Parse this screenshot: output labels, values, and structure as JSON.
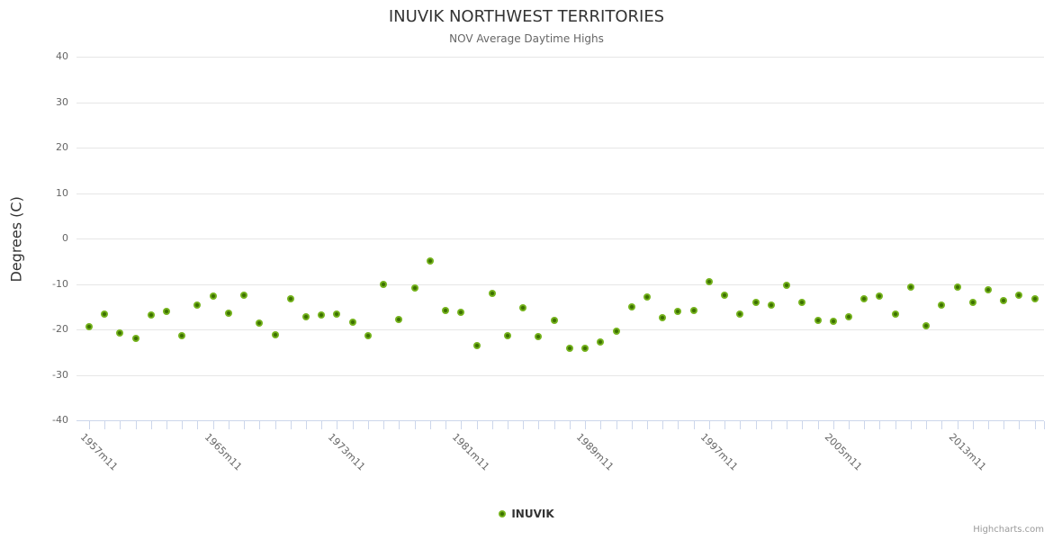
{
  "header": {
    "title": "INUVIK NORTHWEST TERRITORIES",
    "subtitle": "NOV Average Daytime Highs"
  },
  "chart_data": {
    "type": "scatter",
    "title": "INUVIK NORTHWEST TERRITORIES",
    "subtitle": "NOV Average Daytime Highs",
    "xlabel": "",
    "ylabel": "Degrees (C)",
    "ylim": [
      -40,
      40
    ],
    "xlim": [
      1956.2,
      2018.6
    ],
    "grid": true,
    "legend_position": "bottom-center",
    "yticks": [
      40,
      30,
      20,
      10,
      0,
      -10,
      -20,
      -30,
      -40
    ],
    "ytick_labels": [
      "40",
      "30",
      "20",
      "10",
      "0",
      "-10",
      "-20",
      "-30",
      "-40"
    ],
    "xtick_years": [
      1957,
      1965,
      1973,
      1981,
      1989,
      1997,
      2005,
      2013
    ],
    "xtick_labels": [
      "1957m11",
      "1965m11",
      "1973m11",
      "1981m11",
      "1989m11",
      "1997m11",
      "2005m11",
      "2013m11"
    ],
    "series": [
      {
        "name": "INUVIK",
        "color": "#76b41e",
        "x": [
          1957,
          1958,
          1959,
          1960,
          1961,
          1962,
          1963,
          1964,
          1965,
          1966,
          1967,
          1968,
          1969,
          1970,
          1971,
          1972,
          1973,
          1974,
          1975,
          1976,
          1977,
          1978,
          1979,
          1980,
          1981,
          1982,
          1983,
          1984,
          1985,
          1986,
          1987,
          1988,
          1989,
          1990,
          1991,
          1992,
          1993,
          1994,
          1995,
          1996,
          1997,
          1998,
          1999,
          2000,
          2001,
          2002,
          2003,
          2004,
          2005,
          2006,
          2007,
          2008,
          2009,
          2010,
          2011,
          2012,
          2013,
          2014,
          2015,
          2016,
          2017,
          2018
        ],
        "values": [
          -19.4,
          -16.7,
          -20.8,
          -21.9,
          -16.8,
          -16.0,
          -21.3,
          -14.6,
          -12.7,
          -16.5,
          -12.4,
          -18.6,
          -21.1,
          -13.2,
          -17.3,
          -16.8,
          -16.6,
          -18.5,
          -21.3,
          -10.0,
          -17.8,
          -10.9,
          -5.0,
          -15.8,
          -16.3,
          -23.6,
          -12.0,
          -21.3,
          -15.3,
          -21.6,
          -18.1,
          -24.1,
          -24.1,
          -22.8,
          -20.4,
          -15.0,
          -12.8,
          -17.4,
          -16.0,
          -15.8,
          -9.4,
          -12.5,
          -16.7,
          -14.0,
          -14.7,
          -10.2,
          -14.1,
          -18.0,
          -18.3,
          -17.3,
          -13.3,
          -12.7,
          -16.6,
          -10.7,
          -19.1,
          -14.6,
          -10.7,
          -14.0,
          -11.3,
          -13.6,
          -12.4,
          -13.2
        ]
      }
    ]
  },
  "legend": {
    "label": "INUVIK"
  },
  "footer": {
    "credits": "Highcharts.com"
  },
  "colors": {
    "marker_fill": "#76b41e",
    "marker_center": "#3c7000",
    "gridline": "#e6e6e6",
    "axis_line": "#ccd6eb",
    "tick": "#ccd6eb",
    "title_text": "#333333",
    "subtitle_text": "#666666",
    "axis_label_text": "#666666",
    "credits_text": "#999999"
  }
}
